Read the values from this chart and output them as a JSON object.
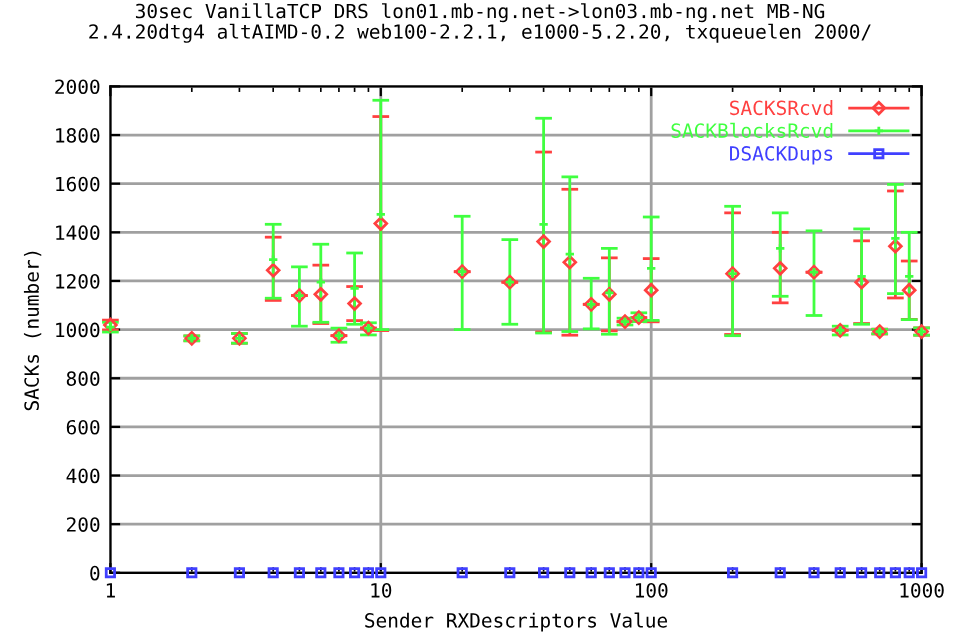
{
  "chart_data": {
    "type": "scatter",
    "title": "30sec VanillaTCP DRS lon01.mb-ng.net->lon03.mb-ng.net MB-NG\n2.4.20dtg4 altAIMD-0.2 web100-2.2.1, e1000-5.2.20, txqueuelen 2000/",
    "xlabel": "Sender RXDescriptors Value",
    "ylabel": "SACKs (number)",
    "x": [
      1,
      2,
      3,
      4,
      5,
      6,
      7,
      8,
      9,
      10,
      20,
      30,
      40,
      50,
      60,
      70,
      80,
      90,
      100,
      200,
      300,
      400,
      500,
      600,
      700,
      800,
      900,
      1000
    ],
    "series": [
      {
        "name": "SACKSRcvd",
        "color": "#ff4040",
        "marker": "diamond",
        "values": [
          1019,
          964,
          964,
          1244,
          1140,
          1145,
          975,
          1107,
          1006,
          1436,
          1238,
          1195,
          1362,
          1277,
          1104,
          1145,
          1033,
          1049,
          1162,
          1230,
          1252,
          1236,
          997,
          1195,
          992,
          1343,
          1162,
          992
        ],
        "errors": [
          20,
          10,
          20,
          [
            1120,
            1380
          ],
          null,
          120,
          null,
          70,
          null,
          440,
          null,
          null,
          [
            990,
            1730
          ],
          300,
          null,
          150,
          null,
          null,
          130,
          250,
          [
            1110,
            1400
          ],
          null,
          null,
          170,
          10,
          [
            1130,
            1570
          ],
          120,
          15
        ]
      },
      {
        "name": "SACKBlocksRcvd",
        "color": "#40ff40",
        "marker": "cross",
        "values": [
          1010,
          964,
          964,
          1288,
          1140,
          1195,
          975,
          1170,
          1006,
          1474,
          1238,
          1195,
          1433,
          1310,
          1104,
          1151,
          1033,
          1049,
          1252,
          1230,
          1334,
          1236,
          997,
          1219,
          992,
          1375,
          1219,
          992
        ],
        "errors": [
          20,
          10,
          20,
          [
            1129,
            1433
          ],
          [
            1014,
            1258
          ],
          [
            1030,
            1351
          ],
          [
            948,
            1006
          ],
          [
            1022,
            1315
          ],
          [
            978,
            1028
          ],
          [
            1000,
            1943
          ],
          [
            1000,
            1466
          ],
          [
            1022,
            1370
          ],
          [
            986,
            1869
          ],
          [
            992,
            1628
          ],
          [
            1003,
            1211
          ],
          [
            981,
            1334
          ],
          [
            1019,
            1047
          ],
          [
            1033,
            1069
          ],
          [
            1038,
            1463
          ],
          [
            975,
            1507
          ],
          [
            1137,
            1480
          ],
          [
            1058,
            1406
          ],
          [
            978,
            1014
          ],
          [
            1022,
            1414
          ],
          [
            983,
            1001
          ],
          [
            1148,
            1597
          ],
          [
            1041,
            1400
          ],
          15
        ]
      },
      {
        "name": "DSACKDups",
        "color": "#4040ff",
        "marker": "square",
        "values": [
          0,
          0,
          0,
          0,
          0,
          0,
          0,
          0,
          0,
          0,
          0,
          0,
          0,
          0,
          0,
          0,
          0,
          0,
          0,
          0,
          0,
          0,
          0,
          0,
          0,
          0,
          0,
          0
        ]
      }
    ],
    "log": "x",
    "xlim": [
      1,
      1000
    ],
    "xticks": [
      1,
      10,
      100,
      1000
    ],
    "ylim": [
      0,
      2000
    ],
    "yticks": [
      0,
      200,
      400,
      600,
      800,
      1000,
      1200,
      1400,
      1600,
      1800,
      2000
    ],
    "grid": true,
    "legend": "top right"
  }
}
